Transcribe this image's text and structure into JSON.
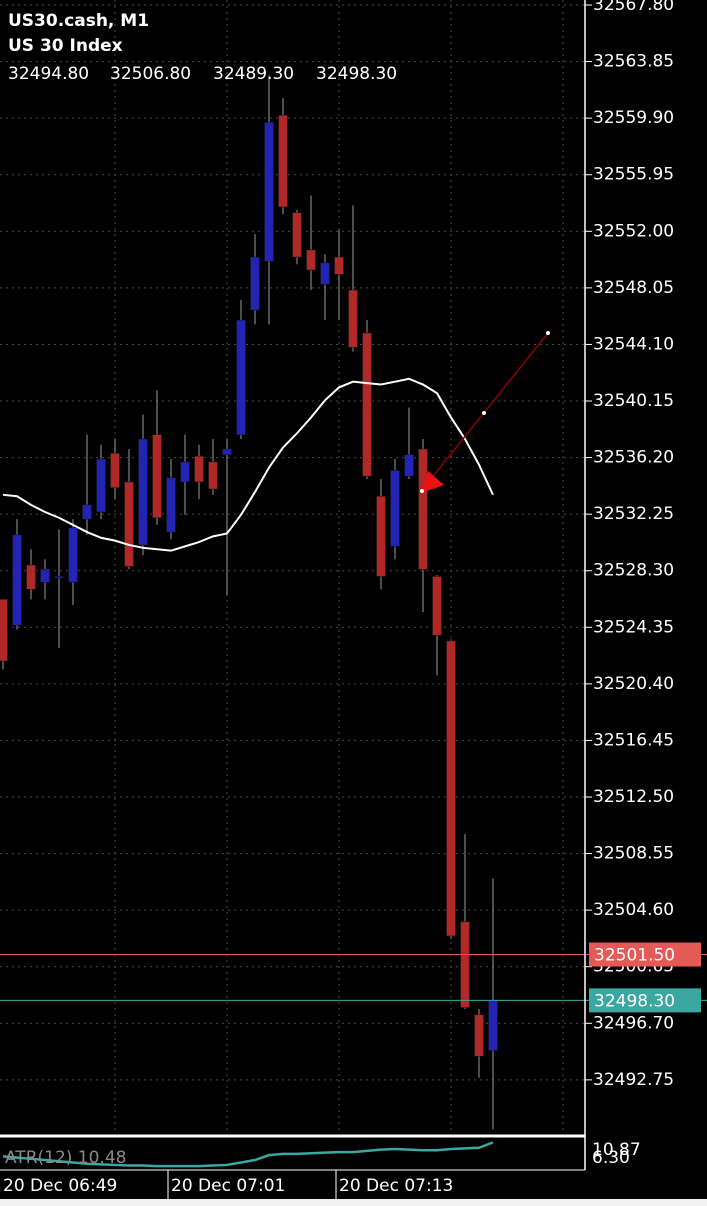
{
  "chart_data": {
    "type": "candlestick",
    "title": "US30.cash, M1",
    "subtitle": "US 30 Index",
    "ohlc_labels": [
      "32494.80",
      "32506.80",
      "32489.30",
      "32498.30"
    ],
    "categories": [
      "20 Dec 06:49",
      null,
      null,
      null,
      null,
      null,
      null,
      null,
      null,
      null,
      null,
      null,
      "20 Dec 07:01",
      null,
      null,
      null,
      null,
      null,
      null,
      null,
      null,
      null,
      null,
      null,
      "20 Dec 07:13",
      null,
      null,
      null,
      null,
      null,
      null,
      null,
      null,
      null,
      null,
      null
    ],
    "open": [
      32526.3,
      32524.5,
      32528.7,
      32527.5,
      32527.8,
      32527.5,
      32531.9,
      32532.4,
      32536.5,
      32534.5,
      32530.1,
      32537.8,
      32531.0,
      32534.5,
      32536.3,
      32535.9,
      32536.4,
      32537.8,
      32546.5,
      32549.9,
      32560.1,
      32553.3,
      32550.7,
      32548.3,
      32550.2,
      32547.9,
      32544.9,
      32533.5,
      32530.0,
      32534.9,
      32536.8,
      32527.9,
      32523.4,
      32503.8,
      32497.3,
      32494.8
    ],
    "high": [
      32526.3,
      32531.9,
      32529.8,
      32529.1,
      32531.2,
      32531.9,
      32537.8,
      32537.1,
      32537.5,
      32536.8,
      32539.2,
      32540.9,
      32536.1,
      32537.8,
      32537.1,
      32537.5,
      32537.5,
      32547.2,
      32551.8,
      32562.9,
      32561.3,
      32553.5,
      32554.5,
      32550.4,
      32552.1,
      32553.8,
      32545.8,
      32534.7,
      32536.1,
      32539.7,
      32537.5,
      32528.0,
      32523.5,
      32509.9,
      32497.7,
      32506.8
    ],
    "low": [
      32521.4,
      32524.2,
      32526.3,
      32526.3,
      32522.9,
      32525.9,
      32530.8,
      32531.9,
      32533.3,
      32528.4,
      32529.4,
      32531.5,
      32530.5,
      32532.2,
      32533.3,
      32533.6,
      32526.6,
      32537.5,
      32545.5,
      32545.5,
      32553.2,
      32549.7,
      32547.9,
      32545.8,
      32545.8,
      32543.6,
      32534.7,
      32527.0,
      32529.1,
      32534.7,
      32525.4,
      32521.0,
      32502.6,
      32497.7,
      32492.9,
      32489.3
    ],
    "close": [
      32522.0,
      32530.8,
      32527.0,
      32528.4,
      32527.9,
      32531.3,
      32532.9,
      32536.1,
      32534.1,
      32528.6,
      32537.5,
      32532.0,
      32534.8,
      32535.9,
      32534.5,
      32534.0,
      32536.8,
      32545.8,
      32550.2,
      32559.6,
      32553.7,
      32550.2,
      32549.3,
      32549.8,
      32549.0,
      32543.9,
      32534.9,
      32527.9,
      32535.3,
      32536.4,
      32528.4,
      32523.8,
      32502.8,
      32497.8,
      32494.4,
      32498.3
    ],
    "up_color": "#2424b4",
    "down_color": "#b02828",
    "wick_color": "#9a9a9a",
    "ma": {
      "color": "#ffffff",
      "values": [
        32533.6,
        32533.5,
        32532.9,
        32532.4,
        32532.0,
        32531.5,
        32531.0,
        32530.6,
        32530.4,
        32530.1,
        32529.9,
        32529.8,
        32529.7,
        32530.0,
        32530.3,
        32530.7,
        32530.9,
        32532.2,
        32533.8,
        32535.5,
        32536.9,
        32537.9,
        32539.0,
        32540.2,
        32541.1,
        32541.5,
        32541.4,
        32541.3,
        32541.5,
        32541.7,
        32541.3,
        32540.7,
        32539.0,
        32537.5,
        32535.7,
        32533.6
      ]
    },
    "price_lines": [
      {
        "value": 32501.5,
        "label": "32501.50",
        "color": "#e35a57"
      },
      {
        "value": 32498.3,
        "label": "32498.30",
        "color": "#3aa7a0"
      }
    ],
    "ylim": [
      32488.9,
      32568.15
    ],
    "yticks": [
      {
        "value": 32567.8,
        "label": "32567.80"
      },
      32563.85,
      {
        "value": 32559.9,
        "label": "32559.90"
      },
      32555.95,
      {
        "value": 32552,
        "label": "32552.00"
      },
      32548.05,
      {
        "value": 32544.1,
        "label": "32544.10"
      },
      32540.15,
      {
        "value": 32536.2,
        "label": "32536.20"
      },
      32532.25,
      {
        "value": 32528.3,
        "label": "32528.30"
      },
      32524.35,
      {
        "value": 32520.4,
        "label": "32520.40"
      },
      32516.45,
      {
        "value": 32512.5,
        "label": "32512.50"
      },
      32508.55,
      {
        "value": 32504.6,
        "label": "32504.60"
      },
      32500.65,
      {
        "value": 32496.7,
        "label": "32496.70"
      },
      32492.75
    ],
    "grid": true,
    "indicator": {
      "label": "ATR(12) 10.48",
      "color": "#3aa7a0",
      "values": [
        8.2,
        8.0,
        7.8,
        7.6,
        7.4,
        7.2,
        7.0,
        6.9,
        6.8,
        6.7,
        6.7,
        6.6,
        6.6,
        6.6,
        6.6,
        6.7,
        6.8,
        7.2,
        7.6,
        8.4,
        8.6,
        8.6,
        8.7,
        8.8,
        8.9,
        8.9,
        9.1,
        9.3,
        9.4,
        9.3,
        9.2,
        9.2,
        9.4,
        9.5,
        9.6,
        10.48
      ],
      "ylim": [
        6.3,
        10.87
      ],
      "yticks": [
        {
          "value": 10.87,
          "label": "10.87"
        },
        {
          "value": 6.3,
          "label": "6.30"
        }
      ]
    }
  }
}
